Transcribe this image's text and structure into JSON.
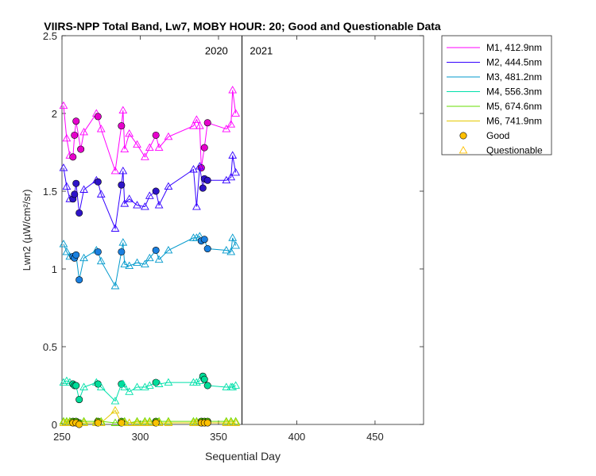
{
  "chart_data": {
    "type": "scatter",
    "title": "VIIRS-NPP Total Band, Lw7, MOBY HOUR: 20;  Good and Questionable Data",
    "xlabel": "Sequential Day",
    "ylabel": "Lwn2 (µW/cm²/sr)",
    "xlim": [
      250,
      481
    ],
    "ylim": [
      0,
      2.5
    ],
    "xticks": [
      250,
      300,
      350,
      400,
      450
    ],
    "xtick_labels": [
      "250",
      "300",
      "350",
      "400",
      "450"
    ],
    "yticks": [
      0,
      0.5,
      1,
      1.5,
      2,
      2.5
    ],
    "ytick_labels": [
      "0",
      "0.5",
      "1",
      "1.5",
      "2",
      "2.5"
    ],
    "grid": false,
    "year_divider_x": 365,
    "year_labels": [
      {
        "text": "2020",
        "x": 356,
        "y": 2.38,
        "anchor": "end"
      },
      {
        "text": "2021",
        "x": 370,
        "y": 2.38,
        "anchor": "start"
      }
    ],
    "legend_position": "outside-top-right",
    "legend_marker_labels": [
      "Good",
      "Questionable"
    ],
    "legend_marker_color": "#FFC000",
    "series": [
      {
        "name": "M1, 412.9nm",
        "line_color": "#FF00FF",
        "fill_color": "#E600CC",
        "points": [
          [
            251,
            2.05,
            "q"
          ],
          [
            253,
            1.84,
            "q"
          ],
          [
            255,
            1.73,
            "q"
          ],
          [
            257,
            1.72,
            "g"
          ],
          [
            258,
            1.86,
            "g"
          ],
          [
            259,
            1.95,
            "g"
          ],
          [
            262,
            1.77,
            "g"
          ],
          [
            264,
            1.88,
            "q"
          ],
          [
            272,
            2.0,
            "q"
          ],
          [
            273,
            1.98,
            "g"
          ],
          [
            275,
            1.9,
            "q"
          ],
          [
            284,
            1.63,
            "q"
          ],
          [
            288,
            1.92,
            "g"
          ],
          [
            289,
            2.02,
            "q"
          ],
          [
            290,
            1.77,
            "q"
          ],
          [
            293,
            1.87,
            "q"
          ],
          [
            298,
            1.8,
            "q"
          ],
          [
            303,
            1.72,
            "q"
          ],
          [
            306,
            1.78,
            "q"
          ],
          [
            310,
            1.86,
            "g"
          ],
          [
            312,
            1.78,
            "q"
          ],
          [
            318,
            1.85,
            "q"
          ],
          [
            334,
            1.92,
            "q"
          ],
          [
            336,
            1.96,
            "q"
          ],
          [
            338,
            1.92,
            "q"
          ],
          [
            339,
            1.65,
            "g"
          ],
          [
            341,
            1.78,
            "g"
          ],
          [
            343,
            1.94,
            "g"
          ],
          [
            355,
            1.9,
            "q"
          ],
          [
            358,
            1.93,
            "q"
          ],
          [
            359,
            2.15,
            "q"
          ],
          [
            361,
            2.0,
            "q"
          ]
        ]
      },
      {
        "name": "M2, 444.5nm",
        "line_color": "#3300FF",
        "fill_color": "#2E14C8",
        "points": [
          [
            251,
            1.65,
            "q"
          ],
          [
            253,
            1.53,
            "q"
          ],
          [
            255,
            1.45,
            "q"
          ],
          [
            257,
            1.45,
            "g"
          ],
          [
            258,
            1.48,
            "g"
          ],
          [
            259,
            1.55,
            "g"
          ],
          [
            261,
            1.36,
            "g"
          ],
          [
            264,
            1.51,
            "q"
          ],
          [
            272,
            1.57,
            "q"
          ],
          [
            273,
            1.56,
            "g"
          ],
          [
            275,
            1.48,
            "q"
          ],
          [
            284,
            1.26,
            "q"
          ],
          [
            288,
            1.54,
            "g"
          ],
          [
            289,
            1.63,
            "q"
          ],
          [
            290,
            1.42,
            "q"
          ],
          [
            293,
            1.45,
            "q"
          ],
          [
            298,
            1.41,
            "q"
          ],
          [
            303,
            1.4,
            "q"
          ],
          [
            306,
            1.47,
            "q"
          ],
          [
            310,
            1.5,
            "g"
          ],
          [
            312,
            1.41,
            "q"
          ],
          [
            318,
            1.53,
            "q"
          ],
          [
            334,
            1.64,
            "q"
          ],
          [
            336,
            1.4,
            "q"
          ],
          [
            338,
            1.66,
            "q"
          ],
          [
            340,
            1.52,
            "g"
          ],
          [
            341,
            1.58,
            "g"
          ],
          [
            343,
            1.57,
            "g"
          ],
          [
            355,
            1.57,
            "q"
          ],
          [
            358,
            1.59,
            "q"
          ],
          [
            359,
            1.73,
            "q"
          ],
          [
            361,
            1.62,
            "q"
          ]
        ]
      },
      {
        "name": "M3, 481.2nm",
        "line_color": "#0099CC",
        "fill_color": "#1A80E0",
        "points": [
          [
            251,
            1.16,
            "q"
          ],
          [
            253,
            1.11,
            "q"
          ],
          [
            255,
            1.08,
            "q"
          ],
          [
            257,
            1.08,
            "g"
          ],
          [
            258,
            1.07,
            "g"
          ],
          [
            259,
            1.09,
            "g"
          ],
          [
            261,
            0.93,
            "g"
          ],
          [
            264,
            1.07,
            "q"
          ],
          [
            272,
            1.12,
            "q"
          ],
          [
            273,
            1.11,
            "g"
          ],
          [
            275,
            1.05,
            "q"
          ],
          [
            284,
            0.89,
            "q"
          ],
          [
            288,
            1.11,
            "g"
          ],
          [
            289,
            1.17,
            "q"
          ],
          [
            290,
            1.03,
            "q"
          ],
          [
            293,
            1.02,
            "q"
          ],
          [
            298,
            1.04,
            "q"
          ],
          [
            303,
            1.03,
            "q"
          ],
          [
            306,
            1.07,
            "q"
          ],
          [
            310,
            1.12,
            "g"
          ],
          [
            312,
            1.06,
            "q"
          ],
          [
            318,
            1.12,
            "q"
          ],
          [
            334,
            1.2,
            "q"
          ],
          [
            336,
            1.2,
            "q"
          ],
          [
            338,
            1.21,
            "q"
          ],
          [
            339,
            1.18,
            "g"
          ],
          [
            341,
            1.19,
            "g"
          ],
          [
            343,
            1.13,
            "g"
          ],
          [
            355,
            1.12,
            "q"
          ],
          [
            358,
            1.11,
            "q"
          ],
          [
            359,
            1.2,
            "q"
          ],
          [
            361,
            1.15,
            "q"
          ]
        ]
      },
      {
        "name": "M4, 556.3nm",
        "line_color": "#00E0AA",
        "fill_color": "#00DD99",
        "points": [
          [
            251,
            0.27,
            "q"
          ],
          [
            253,
            0.28,
            "q"
          ],
          [
            255,
            0.27,
            "q"
          ],
          [
            257,
            0.26,
            "g"
          ],
          [
            258,
            0.25,
            "g"
          ],
          [
            259,
            0.25,
            "g"
          ],
          [
            261,
            0.16,
            "g"
          ],
          [
            264,
            0.24,
            "q"
          ],
          [
            272,
            0.27,
            "q"
          ],
          [
            273,
            0.26,
            "g"
          ],
          [
            275,
            0.24,
            "q"
          ],
          [
            284,
            0.15,
            "q"
          ],
          [
            288,
            0.26,
            "g"
          ],
          [
            289,
            0.26,
            "q"
          ],
          [
            290,
            0.24,
            "q"
          ],
          [
            293,
            0.21,
            "q"
          ],
          [
            298,
            0.24,
            "q"
          ],
          [
            303,
            0.24,
            "q"
          ],
          [
            306,
            0.25,
            "q"
          ],
          [
            310,
            0.27,
            "g"
          ],
          [
            312,
            0.26,
            "q"
          ],
          [
            318,
            0.27,
            "q"
          ],
          [
            334,
            0.27,
            "q"
          ],
          [
            336,
            0.27,
            "q"
          ],
          [
            338,
            0.28,
            "q"
          ],
          [
            340,
            0.31,
            "g"
          ],
          [
            341,
            0.29,
            "g"
          ],
          [
            343,
            0.25,
            "g"
          ],
          [
            355,
            0.24,
            "q"
          ],
          [
            358,
            0.24,
            "q"
          ],
          [
            359,
            0.24,
            "q"
          ],
          [
            361,
            0.25,
            "q"
          ]
        ]
      },
      {
        "name": "M5, 674.6nm",
        "line_color": "#66DD00",
        "fill_color": "#55CC00",
        "points": [
          [
            251,
            0.02,
            "q"
          ],
          [
            253,
            0.02,
            "q"
          ],
          [
            255,
            0.02,
            "q"
          ],
          [
            257,
            0.02,
            "g"
          ],
          [
            259,
            0.02,
            "g"
          ],
          [
            261,
            0.01,
            "g"
          ],
          [
            264,
            0.02,
            "q"
          ],
          [
            272,
            0.02,
            "q"
          ],
          [
            273,
            0.02,
            "g"
          ],
          [
            275,
            0.02,
            "q"
          ],
          [
            284,
            0.01,
            "q"
          ],
          [
            288,
            0.02,
            "g"
          ],
          [
            290,
            0.02,
            "q"
          ],
          [
            293,
            0.01,
            "q"
          ],
          [
            298,
            0.02,
            "q"
          ],
          [
            303,
            0.02,
            "q"
          ],
          [
            306,
            0.02,
            "q"
          ],
          [
            310,
            0.02,
            "g"
          ],
          [
            312,
            0.02,
            "q"
          ],
          [
            318,
            0.02,
            "q"
          ],
          [
            334,
            0.02,
            "q"
          ],
          [
            336,
            0.02,
            "q"
          ],
          [
            339,
            0.02,
            "g"
          ],
          [
            341,
            0.02,
            "g"
          ],
          [
            343,
            0.02,
            "g"
          ],
          [
            355,
            0.02,
            "q"
          ],
          [
            358,
            0.02,
            "q"
          ],
          [
            361,
            0.02,
            "q"
          ]
        ]
      },
      {
        "name": "M6, 741.9nm",
        "line_color": "#E6C800",
        "fill_color": "#FFC000",
        "points": [
          [
            251,
            0.01,
            "q"
          ],
          [
            253,
            0.01,
            "q"
          ],
          [
            255,
            0.01,
            "q"
          ],
          [
            257,
            0.01,
            "g"
          ],
          [
            259,
            0.01,
            "g"
          ],
          [
            261,
            0.0,
            "g"
          ],
          [
            264,
            0.01,
            "q"
          ],
          [
            272,
            0.01,
            "q"
          ],
          [
            273,
            0.01,
            "g"
          ],
          [
            275,
            0.01,
            "q"
          ],
          [
            284,
            0.09,
            "q"
          ],
          [
            288,
            0.01,
            "g"
          ],
          [
            290,
            0.01,
            "q"
          ],
          [
            293,
            0.01,
            "q"
          ],
          [
            298,
            0.01,
            "q"
          ],
          [
            303,
            0.01,
            "q"
          ],
          [
            306,
            0.01,
            "q"
          ],
          [
            310,
            0.01,
            "g"
          ],
          [
            312,
            0.01,
            "q"
          ],
          [
            318,
            0.01,
            "q"
          ],
          [
            334,
            0.01,
            "q"
          ],
          [
            336,
            0.01,
            "q"
          ],
          [
            339,
            0.01,
            "g"
          ],
          [
            341,
            0.01,
            "g"
          ],
          [
            343,
            0.01,
            "g"
          ],
          [
            355,
            0.01,
            "q"
          ],
          [
            358,
            0.01,
            "q"
          ],
          [
            361,
            0.01,
            "q"
          ]
        ]
      }
    ]
  }
}
